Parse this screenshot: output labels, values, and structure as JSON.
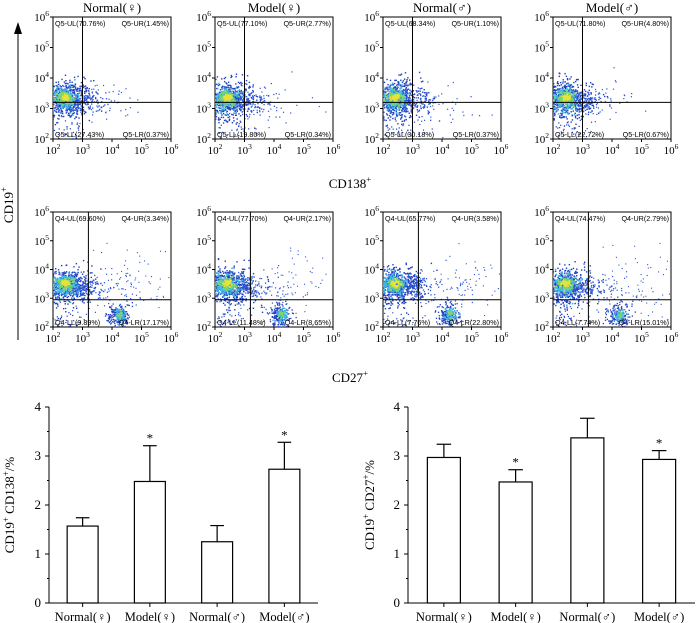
{
  "flow": {
    "y_axis_label": "CD19",
    "y_axis_sup": "+",
    "row1": {
      "x_axis_label": "CD138",
      "x_axis_sup": "+",
      "panels": [
        {
          "title": "Normal(♀)",
          "quadrants": {
            "ul": "Q5-UL(70.76%)",
            "ur": "Q5-UR(1.45%)",
            "ll": "Q5-LL(27.43%)",
            "lr": "Q5-LR(0.37%)"
          }
        },
        {
          "title": "Model(♀)",
          "quadrants": {
            "ul": "Q5-UL(77.10%)",
            "ur": "Q5-UR(2.77%)",
            "ll": "Q5-LL(19.80%)",
            "lr": "Q5-LR(0.34%)"
          }
        },
        {
          "title": "Normal(♂)",
          "quadrants": {
            "ul": "Q5-UL(68.34%)",
            "ur": "Q5-UR(1.10%)",
            "ll": "Q5-LL(30.18%)",
            "lr": "Q5-LR(0.37%)"
          }
        },
        {
          "title": "Model(♂)",
          "quadrants": {
            "ul": "Q5-UL(71.80%)",
            "ur": "Q5-UR(4.80%)",
            "ll": "Q5-LL(22.72%)",
            "lr": "Q5-LR(0.67%)"
          }
        }
      ]
    },
    "row2": {
      "x_axis_label": "CD27",
      "x_axis_sup": "+",
      "panels": [
        {
          "quadrants": {
            "ul": "Q4-UL(69.60%)",
            "ur": "Q4-UR(3.34%)",
            "ll": "Q4-LL(9.89%)",
            "lr": "Q4-LR(17.17%)"
          }
        },
        {
          "quadrants": {
            "ul": "Q4-UL(77.70%)",
            "ur": "Q4-UR(2.17%)",
            "ll": "Q4-LL(11.48%)",
            "lr": "Q4-LR(8.65%)"
          }
        },
        {
          "quadrants": {
            "ul": "Q4-UL(65.77%)",
            "ur": "Q4-UR(3.58%)",
            "ll": "Q4-LL(7.76%)",
            "lr": "Q4-LR(22.80%)"
          }
        },
        {
          "quadrants": {
            "ul": "Q4-UL(74.47%)",
            "ur": "Q4-UR(2.79%)",
            "ll": "Q4-LL(7.74%)",
            "lr": "Q4-LR(15.01%)"
          }
        }
      ]
    },
    "x_ticks": [
      "10",
      "10",
      "10",
      "10",
      "10"
    ],
    "x_tick_exps": [
      "2",
      "3",
      "4",
      "5",
      "6"
    ],
    "y_ticks": [
      "10",
      "10",
      "10",
      "10",
      "10"
    ],
    "y_tick_exps": [
      "2",
      "3",
      "4",
      "5",
      "6"
    ]
  },
  "chart_data": [
    {
      "type": "bar",
      "title": "",
      "ylabel": "CD19+ CD138+/%",
      "ylabel_parts": {
        "a": "CD19",
        "b": " CD138",
        "c": "/%"
      },
      "categories": [
        "Normal(♀)",
        "Model(♀)",
        "Normal(♂)",
        "Model(♂)"
      ],
      "values": [
        1.57,
        2.48,
        1.25,
        2.73
      ],
      "errors": [
        0.17,
        0.73,
        0.33,
        0.55
      ],
      "significant": [
        false,
        true,
        false,
        true
      ],
      "sig_marker": "*",
      "ylim": [
        0,
        4
      ],
      "yticks": [
        "0",
        "1",
        "2",
        "3",
        "4"
      ]
    },
    {
      "type": "bar",
      "title": "",
      "ylabel": "CD19+ CD27+/%",
      "ylabel_parts": {
        "a": "CD19",
        "b": " CD27",
        "c": "/%"
      },
      "categories": [
        "Normal(♀)",
        "Model(♀)",
        "Normal(♂)",
        "Model(♂)"
      ],
      "values": [
        2.97,
        2.47,
        3.37,
        2.93
      ],
      "errors": [
        0.27,
        0.25,
        0.4,
        0.18
      ],
      "significant": [
        false,
        true,
        false,
        true
      ],
      "sig_marker": "*",
      "ylim": [
        0,
        4
      ],
      "yticks": [
        "0",
        "1",
        "2",
        "3",
        "4"
      ]
    }
  ]
}
